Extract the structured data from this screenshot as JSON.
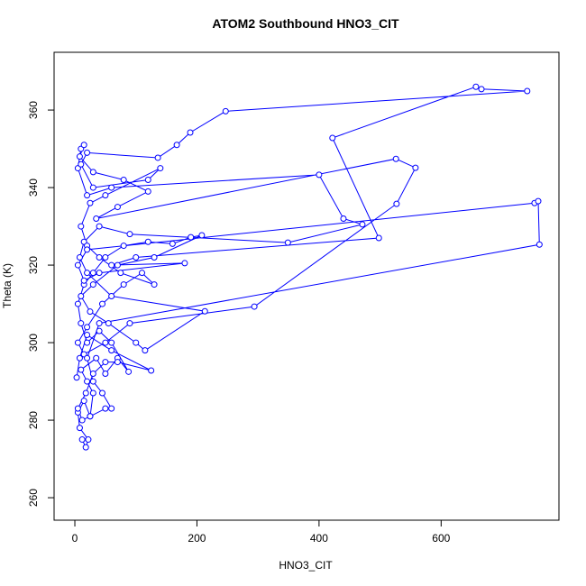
{
  "chart_data": {
    "type": "line",
    "title": "ATOM2 Southbound HNO3_CIT",
    "xlabel": "HNO3_CIT",
    "ylabel": "Theta (K)",
    "color": "#0000ff",
    "marker": "circle",
    "grid": false,
    "xlim": [
      -34,
      793
    ],
    "ylim": [
      254.2,
      374.9
    ],
    "xticks": [
      0,
      200,
      400,
      600
    ],
    "yticks": [
      260,
      280,
      300,
      320,
      340,
      360
    ],
    "x": [
      12,
      18,
      22,
      8,
      5,
      15,
      25,
      30,
      20,
      10,
      35,
      50,
      70,
      88,
      60,
      40,
      20,
      10,
      5,
      15,
      30,
      50,
      80,
      120,
      160,
      190,
      208,
      130,
      70,
      30,
      10,
      25,
      55,
      100,
      115,
      213,
      60,
      20,
      8,
      15,
      40,
      90,
      349,
      471,
      440,
      400,
      60,
      20,
      5,
      10,
      15,
      8,
      30,
      80,
      120,
      70,
      35,
      526,
      558,
      527,
      294,
      90,
      50,
      15,
      5,
      20,
      45,
      80,
      110,
      130,
      75,
      40,
      20,
      10,
      25,
      50,
      140,
      120,
      30,
      10,
      20,
      136,
      167,
      189,
      247,
      741,
      666,
      657,
      422,
      498,
      100,
      60,
      180,
      40,
      15,
      5,
      20,
      753,
      759,
      761,
      40,
      20,
      30,
      45,
      60,
      50,
      25,
      12,
      5,
      18,
      30,
      50,
      70,
      125,
      60,
      20,
      8,
      3
    ],
    "values": [
      275,
      273,
      275,
      278,
      282,
      285,
      281,
      287,
      290,
      293,
      296,
      292,
      296,
      292.5,
      300,
      303,
      300,
      305,
      310,
      315,
      318,
      322,
      325,
      326,
      325.5,
      327.2,
      327.7,
      322,
      320,
      315,
      312,
      308,
      305,
      300,
      298,
      308.1,
      312,
      318,
      322,
      326,
      330,
      328,
      325.8,
      330.5,
      332,
      343.3,
      340,
      338,
      345,
      350,
      351,
      348,
      344,
      342,
      339,
      335,
      332,
      347.4,
      345.1,
      335.8,
      309.3,
      305,
      300,
      297,
      300,
      304,
      310,
      315,
      318,
      315,
      318,
      322,
      325,
      330,
      336,
      338,
      345,
      342,
      340,
      346,
      349,
      347.7,
      351,
      354.2,
      359.7,
      364.9,
      365.4,
      366,
      352.8,
      327,
      322,
      320,
      320.5,
      318,
      316,
      320,
      324,
      336,
      336.5,
      325.3,
      305,
      296,
      290,
      287,
      283,
      283,
      281,
      280,
      283,
      287,
      292,
      295,
      295,
      292.8,
      298,
      302,
      296,
      291
    ]
  }
}
